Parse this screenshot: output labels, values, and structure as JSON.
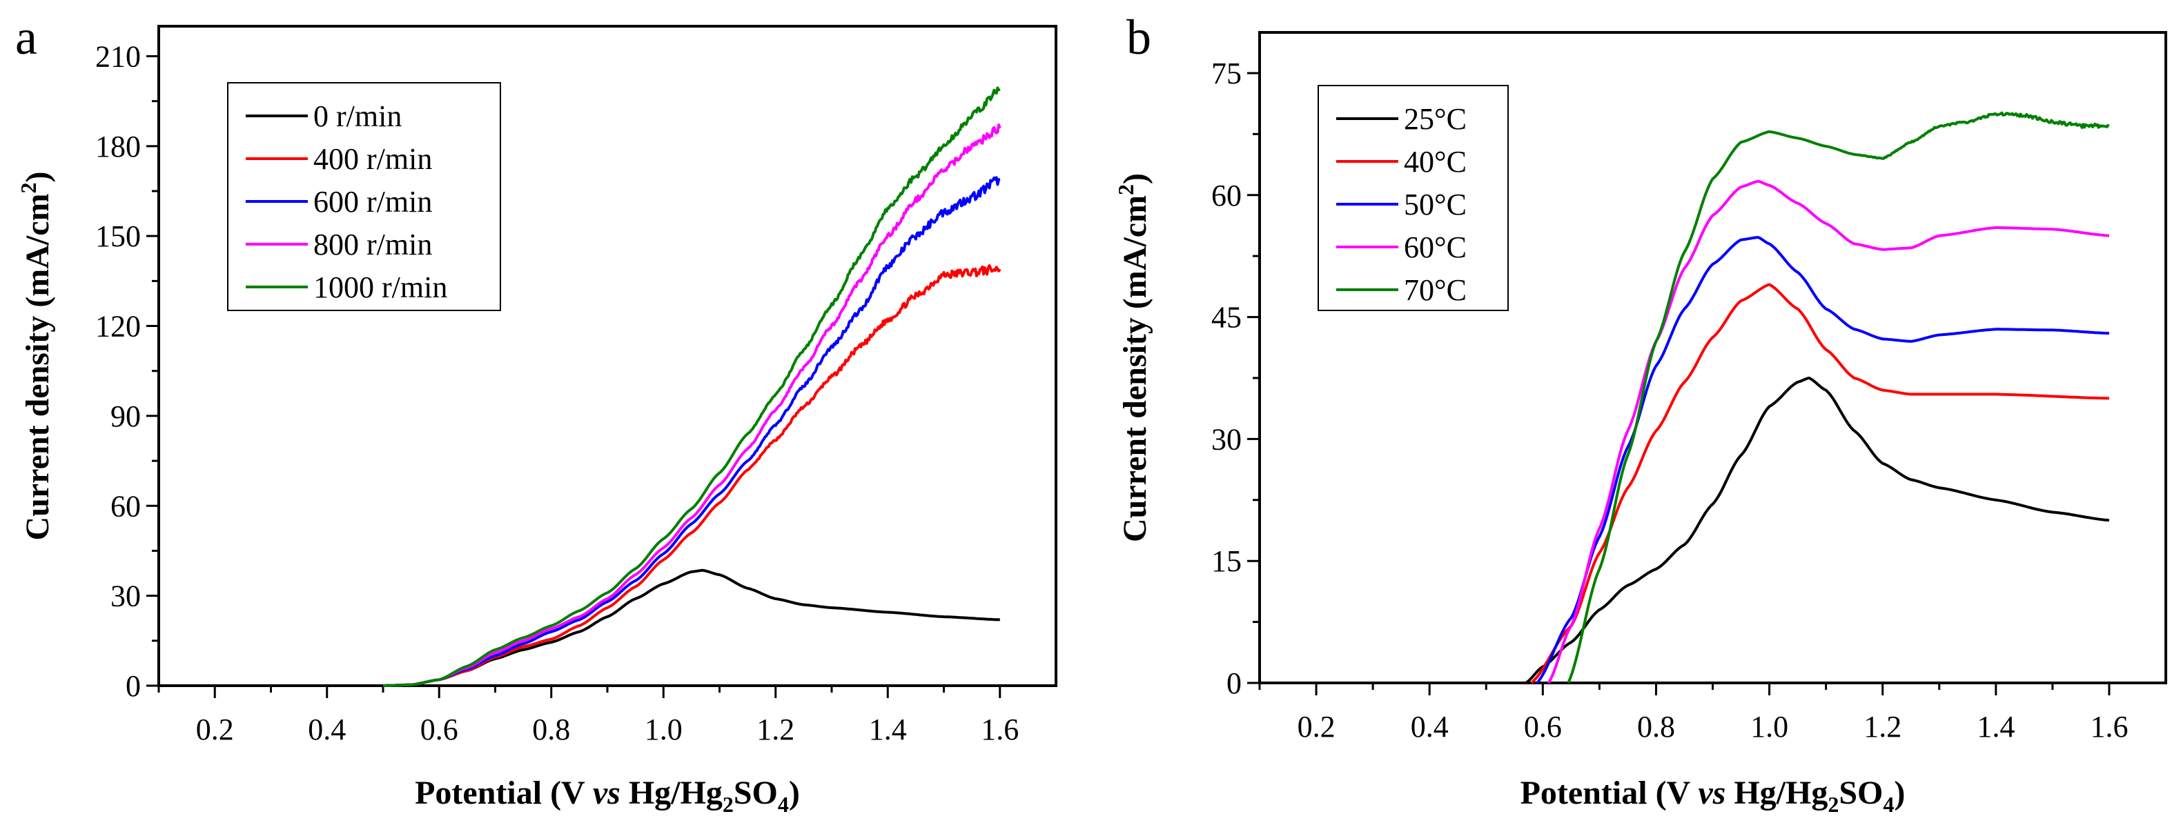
{
  "chart_data": [
    {
      "type": "line",
      "panel_label": "a",
      "xlabel": "Potential (V vs Hg/Hg2SO4)",
      "xlabel_parts": [
        "Potential (V ",
        "vs",
        " Hg/Hg",
        "2",
        "SO",
        "4",
        ")"
      ],
      "ylabel": "Current density (mA/cm2)",
      "ylabel_parts": [
        "Current density (mA/cm",
        "2",
        ")"
      ],
      "xlim": [
        0.1,
        1.7
      ],
      "ylim": [
        0,
        220
      ],
      "xticks": [
        "0.2",
        "0.4",
        "0.6",
        "0.8",
        "1.0",
        "1.2",
        "1.4",
        "1.6"
      ],
      "yticks": [
        "0",
        "30",
        "60",
        "90",
        "120",
        "150",
        "180",
        "210"
      ],
      "legend_position": "top-left",
      "series": [
        {
          "name": "0 r/min",
          "color": "#000000",
          "noise": 0,
          "x": [
            0.5,
            0.55,
            0.6,
            0.65,
            0.7,
            0.75,
            0.8,
            0.85,
            0.9,
            0.95,
            1.0,
            1.05,
            1.07,
            1.1,
            1.15,
            1.2,
            1.25,
            1.3,
            1.4,
            1.5,
            1.6
          ],
          "y": [
            0,
            0.3,
            2,
            5,
            9,
            12,
            14.5,
            18,
            23,
            29,
            34,
            38,
            38.5,
            37,
            32.5,
            29,
            27,
            26,
            24.5,
            23,
            22
          ]
        },
        {
          "name": "400 r/min",
          "color": "#ff0000",
          "noise": 1.6,
          "x": [
            0.5,
            0.55,
            0.6,
            0.65,
            0.7,
            0.75,
            0.8,
            0.85,
            0.9,
            0.95,
            1.0,
            1.05,
            1.1,
            1.15,
            1.2,
            1.25,
            1.3,
            1.35,
            1.4,
            1.45,
            1.5,
            1.55,
            1.6
          ],
          "y": [
            0,
            0.3,
            2,
            5,
            9.5,
            13,
            15.5,
            20,
            26,
            33,
            42,
            51,
            61,
            72,
            82,
            93,
            103,
            113,
            122,
            130,
            137,
            138,
            139
          ]
        },
        {
          "name": "600 r/min",
          "color": "#0000ff",
          "noise": 1.6,
          "x": [
            0.5,
            0.55,
            0.6,
            0.65,
            0.7,
            0.75,
            0.8,
            0.85,
            0.9,
            0.95,
            1.0,
            1.05,
            1.1,
            1.15,
            1.2,
            1.25,
            1.3,
            1.35,
            1.4,
            1.45,
            1.5,
            1.55,
            1.6
          ],
          "y": [
            0,
            0.3,
            2,
            5.5,
            10,
            14,
            18,
            22,
            28,
            35,
            44,
            54,
            64,
            75,
            87,
            100,
            113,
            125,
            140,
            150,
            158,
            163,
            169
          ]
        },
        {
          "name": "800 r/min",
          "color": "#ff00ff",
          "noise": 1.3,
          "x": [
            0.5,
            0.55,
            0.6,
            0.65,
            0.7,
            0.75,
            0.8,
            0.85,
            0.9,
            0.95,
            1.0,
            1.05,
            1.1,
            1.15,
            1.2,
            1.25,
            1.3,
            1.35,
            1.4,
            1.45,
            1.5,
            1.55,
            1.6
          ],
          "y": [
            0,
            0.3,
            2,
            6,
            11,
            15,
            19,
            23,
            29,
            37,
            46,
            56,
            67,
            79,
            92,
            106,
            120,
            135,
            150,
            162,
            172,
            180,
            186
          ]
        },
        {
          "name": "1000 r/min",
          "color": "#008000",
          "noise": 1.3,
          "x": [
            0.5,
            0.55,
            0.6,
            0.65,
            0.7,
            0.75,
            0.8,
            0.85,
            0.9,
            0.95,
            1.0,
            1.05,
            1.1,
            1.15,
            1.2,
            1.25,
            1.3,
            1.35,
            1.4,
            1.45,
            1.5,
            1.55,
            1.6
          ],
          "y": [
            0,
            0.3,
            2,
            6.5,
            12,
            16,
            20,
            25,
            31,
            39,
            49,
            59,
            71,
            84,
            97,
            112,
            127,
            143,
            159,
            170,
            180,
            190,
            199
          ]
        }
      ]
    },
    {
      "type": "line",
      "panel_label": "b",
      "xlabel": "Potential (V vs Hg/Hg2SO4)",
      "xlabel_parts": [
        "Potential (V ",
        "vs",
        " Hg/Hg",
        "2",
        "SO",
        "4",
        ")"
      ],
      "ylabel": "Current density (mA/cm2)",
      "ylabel_parts": [
        "Current density (mA/cm",
        "2",
        ")"
      ],
      "xlim": [
        0.1,
        1.7
      ],
      "ylim": [
        0,
        80
      ],
      "xticks": [
        "0.2",
        "0.4",
        "0.6",
        "0.8",
        "1.0",
        "1.2",
        "1.4",
        "1.6"
      ],
      "yticks": [
        "0",
        "15",
        "30",
        "45",
        "60",
        "75"
      ],
      "legend_position": "top-left",
      "series": [
        {
          "name": "25°C",
          "color": "#000000",
          "noise": 0,
          "x": [
            0.57,
            0.6,
            0.65,
            0.7,
            0.75,
            0.8,
            0.85,
            0.9,
            0.95,
            1.0,
            1.05,
            1.07,
            1.1,
            1.15,
            1.2,
            1.25,
            1.3,
            1.4,
            1.5,
            1.6
          ],
          "y": [
            0,
            2,
            5,
            9,
            12,
            14,
            17,
            22,
            28,
            34,
            37,
            37.5,
            36,
            31,
            27,
            25,
            24,
            22.5,
            21,
            20
          ]
        },
        {
          "name": "40°C",
          "color": "#ff0000",
          "noise": 0,
          "x": [
            0.58,
            0.65,
            0.7,
            0.75,
            0.8,
            0.85,
            0.9,
            0.95,
            1.0,
            1.05,
            1.1,
            1.15,
            1.2,
            1.25,
            1.4,
            1.6
          ],
          "y": [
            0,
            7,
            16,
            24,
            31,
            37,
            42.5,
            47,
            49,
            46,
            41,
            37.5,
            36,
            35.5,
            35.5,
            35
          ]
        },
        {
          "name": "50°C",
          "color": "#0000ff",
          "noise": 0,
          "x": [
            0.59,
            0.65,
            0.7,
            0.75,
            0.8,
            0.85,
            0.9,
            0.95,
            0.98,
            1.0,
            1.05,
            1.1,
            1.15,
            1.2,
            1.25,
            1.3,
            1.4,
            1.5,
            1.6
          ],
          "y": [
            0,
            8,
            18,
            29,
            39,
            46,
            51.5,
            54.5,
            54.8,
            54,
            50.5,
            46,
            43.5,
            42.3,
            42,
            42.8,
            43.5,
            43.4,
            43
          ]
        },
        {
          "name": "60°C",
          "color": "#ff00ff",
          "noise": 0,
          "x": [
            0.61,
            0.65,
            0.7,
            0.75,
            0.8,
            0.85,
            0.9,
            0.95,
            0.98,
            1.0,
            1.05,
            1.1,
            1.15,
            1.2,
            1.25,
            1.3,
            1.4,
            1.5,
            1.6
          ],
          "y": [
            0,
            7,
            19,
            31,
            42,
            51,
            57.5,
            61,
            61.7,
            61.2,
            59,
            56.5,
            54,
            53.3,
            53.5,
            55,
            56,
            55.8,
            55
          ]
        },
        {
          "name": "70°C",
          "color": "#008000",
          "noise": 0.25,
          "x": [
            0.645,
            0.7,
            0.75,
            0.8,
            0.85,
            0.9,
            0.95,
            1.0,
            1.05,
            1.1,
            1.15,
            1.2,
            1.25,
            1.3,
            1.35,
            1.4,
            1.45,
            1.5,
            1.55,
            1.6
          ],
          "y": [
            0,
            14,
            28,
            42,
            53,
            62,
            66.5,
            67.8,
            67,
            66,
            65,
            64.5,
            66.5,
            68.5,
            69,
            70,
            69.8,
            69,
            68.5,
            68.5
          ]
        }
      ]
    }
  ]
}
